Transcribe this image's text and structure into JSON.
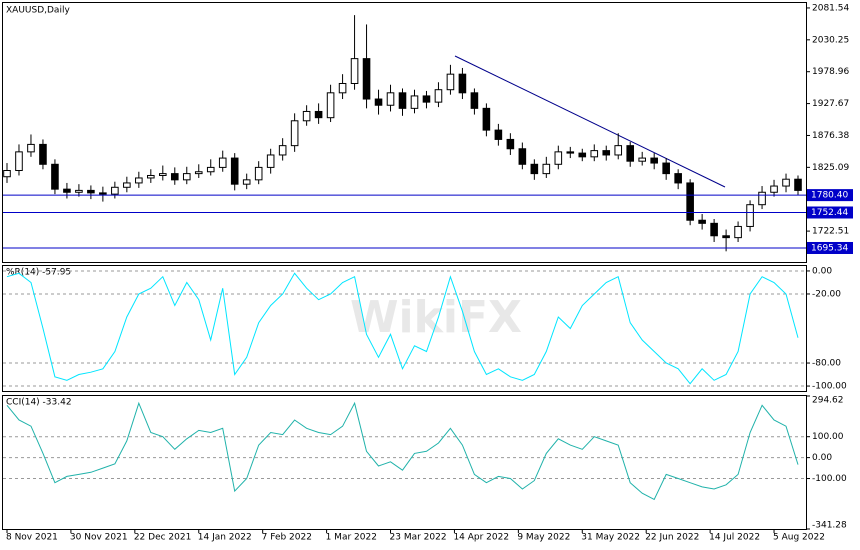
{
  "chart_data": [
    {
      "type": "candlestick",
      "title": "XAUUSD,Daily",
      "watermark": "WikiFX",
      "x": [
        0,
        3,
        6,
        9,
        12,
        15,
        18,
        21,
        24,
        27,
        30,
        33,
        36,
        39,
        42,
        45,
        48,
        51,
        54,
        57,
        60,
        63,
        66,
        69,
        72,
        75,
        78,
        81,
        84,
        87,
        90,
        93,
        96,
        99,
        102,
        105,
        108,
        111,
        114,
        117,
        120,
        123,
        126,
        129,
        132,
        135,
        138,
        141,
        144,
        147,
        150,
        153,
        156,
        159,
        162,
        165,
        168,
        171,
        174,
        177,
        180,
        183,
        186,
        189,
        192,
        195,
        198
      ],
      "open": [
        1810,
        1820,
        1850,
        1862,
        1830,
        1790,
        1785,
        1788,
        1784,
        1782,
        1793,
        1800,
        1808,
        1812,
        1815,
        1805,
        1815,
        1818,
        1825,
        1840,
        1798,
        1805,
        1825,
        1845,
        1860,
        1900,
        1915,
        1905,
        1945,
        1960,
        2000,
        1935,
        1925,
        1945,
        1920,
        1940,
        1930,
        1950,
        1975,
        1945,
        1920,
        1885,
        1870,
        1855,
        1830,
        1815,
        1830,
        1850,
        1848,
        1842,
        1852,
        1845,
        1860,
        1835,
        1840,
        1832,
        1815,
        1800,
        1740,
        1735,
        1715,
        1712,
        1730,
        1765,
        1785,
        1795,
        1806
      ],
      "high": [
        1832,
        1862,
        1878,
        1870,
        1838,
        1800,
        1798,
        1796,
        1794,
        1802,
        1810,
        1818,
        1822,
        1828,
        1825,
        1826,
        1830,
        1838,
        1852,
        1848,
        1815,
        1835,
        1855,
        1872,
        1912,
        1925,
        1928,
        1958,
        1975,
        2070,
        2055,
        1950,
        1958,
        1952,
        1950,
        1948,
        1962,
        1990,
        1985,
        1952,
        1928,
        1895,
        1880,
        1865,
        1838,
        1842,
        1860,
        1858,
        1855,
        1862,
        1860,
        1880,
        1866,
        1850,
        1848,
        1840,
        1822,
        1806,
        1750,
        1742,
        1725,
        1738,
        1772,
        1795,
        1805,
        1815,
        1812
      ],
      "low": [
        1800,
        1812,
        1842,
        1822,
        1782,
        1775,
        1778,
        1774,
        1770,
        1775,
        1785,
        1792,
        1800,
        1804,
        1797,
        1798,
        1808,
        1812,
        1818,
        1788,
        1790,
        1798,
        1815,
        1836,
        1850,
        1892,
        1895,
        1898,
        1935,
        1950,
        1920,
        1910,
        1915,
        1908,
        1912,
        1920,
        1922,
        1942,
        1935,
        1910,
        1875,
        1860,
        1845,
        1822,
        1805,
        1808,
        1822,
        1840,
        1835,
        1835,
        1836,
        1838,
        1826,
        1828,
        1822,
        1805,
        1790,
        1732,
        1725,
        1705,
        1690,
        1705,
        1722,
        1758,
        1778,
        1785,
        1780
      ],
      "close": [
        1820,
        1850,
        1862,
        1830,
        1790,
        1785,
        1788,
        1784,
        1782,
        1793,
        1800,
        1808,
        1812,
        1815,
        1805,
        1815,
        1818,
        1825,
        1840,
        1798,
        1805,
        1825,
        1845,
        1860,
        1900,
        1915,
        1905,
        1945,
        1960,
        2000,
        1935,
        1925,
        1945,
        1920,
        1940,
        1930,
        1950,
        1975,
        1945,
        1920,
        1885,
        1870,
        1855,
        1830,
        1815,
        1830,
        1850,
        1848,
        1842,
        1852,
        1845,
        1860,
        1835,
        1840,
        1832,
        1815,
        1800,
        1740,
        1735,
        1715,
        1712,
        1730,
        1765,
        1785,
        1795,
        1806,
        1788
      ],
      "xlim": [
        -1,
        200
      ],
      "ylim": [
        1672.8,
        2089.5
      ],
      "yticks": [
        1722.51,
        1825.09,
        1876.38,
        1927.67,
        1978.96,
        2030.25,
        2081.54
      ],
      "levels": [
        1780.4,
        1752.44,
        1695.34
      ],
      "level_labels": [
        "1780.40",
        "1752.44",
        "1695.34"
      ],
      "level_color": "#0000c8"
    },
    {
      "type": "line",
      "title": "%R(14) -57.95",
      "x": [
        0,
        3,
        6,
        9,
        12,
        15,
        18,
        21,
        24,
        27,
        30,
        33,
        36,
        39,
        42,
        45,
        48,
        51,
        54,
        57,
        60,
        63,
        66,
        69,
        72,
        75,
        78,
        81,
        84,
        87,
        90,
        93,
        96,
        99,
        102,
        105,
        108,
        111,
        114,
        117,
        120,
        123,
        126,
        129,
        132,
        135,
        138,
        141,
        144,
        147,
        150,
        153,
        156,
        159,
        162,
        165,
        168,
        171,
        174,
        177,
        180,
        183,
        186,
        189,
        192,
        195,
        198
      ],
      "series": [
        {
          "name": "%R(14)",
          "color": "#00e5ff",
          "values": [
            -5,
            -2,
            -10,
            -50,
            -92,
            -95,
            -90,
            -88,
            -85,
            -70,
            -40,
            -20,
            -15,
            -5,
            -30,
            -10,
            -25,
            -60,
            -15,
            -90,
            -75,
            -45,
            -30,
            -20,
            -2,
            -15,
            -25,
            -20,
            -10,
            -5,
            -55,
            -75,
            -55,
            -85,
            -65,
            -70,
            -40,
            -5,
            -35,
            -70,
            -90,
            -85,
            -92,
            -95,
            -90,
            -70,
            -40,
            -50,
            -30,
            -20,
            -10,
            -5,
            -45,
            -60,
            -70,
            -80,
            -85,
            -98,
            -85,
            -95,
            -90,
            -70,
            -20,
            -5,
            -10,
            -20,
            -57.95
          ]
        }
      ],
      "xlim": [
        -1,
        200
      ],
      "ylim": [
        -104.3,
        4.3
      ],
      "yticks": [
        {
          "value": 0,
          "label": "0.00"
        },
        {
          "value": -20,
          "label": "-20.00"
        },
        {
          "value": -80,
          "label": "-80.00"
        },
        {
          "value": -100,
          "label": "-100.00"
        }
      ]
    },
    {
      "type": "line",
      "title": "CCI(14) -33.42",
      "x": [
        0,
        3,
        6,
        9,
        12,
        15,
        18,
        21,
        24,
        27,
        30,
        33,
        36,
        39,
        42,
        45,
        48,
        51,
        54,
        57,
        60,
        63,
        66,
        69,
        72,
        75,
        78,
        81,
        84,
        87,
        90,
        93,
        96,
        99,
        102,
        105,
        108,
        111,
        114,
        117,
        120,
        123,
        126,
        129,
        132,
        135,
        138,
        141,
        144,
        147,
        150,
        153,
        156,
        159,
        162,
        165,
        168,
        171,
        174,
        177,
        180,
        183,
        186,
        189,
        192,
        195,
        198
      ],
      "series": [
        {
          "name": "CCI(14)",
          "color": "#20b2aa",
          "values": [
            250,
            180,
            150,
            20,
            -120,
            -90,
            -80,
            -70,
            -50,
            -30,
            80,
            260,
            120,
            100,
            40,
            90,
            130,
            120,
            140,
            -160,
            -100,
            60,
            120,
            110,
            180,
            140,
            120,
            110,
            150,
            260,
            30,
            -40,
            -20,
            -60,
            20,
            30,
            70,
            140,
            60,
            -80,
            -120,
            -90,
            -100,
            -150,
            -110,
            20,
            90,
            60,
            40,
            100,
            80,
            60,
            -120,
            -170,
            -200,
            -80,
            -100,
            -120,
            -140,
            -150,
            -130,
            -80,
            120,
            250,
            180,
            150,
            -33.42
          ]
        }
      ],
      "xlim": [
        -1,
        200
      ],
      "ylim": [
        -341.28,
        294.62
      ],
      "yticks": [
        294.62,
        {
          "value": 100,
          "label": "100.00"
        },
        {
          "value": 0,
          "label": "0.00"
        },
        {
          "value": -100,
          "label": "-100.00"
        },
        -341.28
      ],
      "xticks": [
        {
          "value": 0,
          "label": "8 Nov 2021"
        },
        {
          "value": 16,
          "label": "30 Nov 2021"
        },
        {
          "value": 32,
          "label": "22 Dec 2021"
        },
        {
          "value": 48,
          "label": "14 Jan 2022"
        },
        {
          "value": 64,
          "label": "7 Feb 2022"
        },
        {
          "value": 80,
          "label": "1 Mar 2022"
        },
        {
          "value": 96,
          "label": "23 Mar 2022"
        },
        {
          "value": 112,
          "label": "14 Apr 2022"
        },
        {
          "value": 128,
          "label": "9 May 2022"
        },
        {
          "value": 144,
          "label": "31 May 2022"
        },
        {
          "value": 160,
          "label": "22 Jun 2022"
        },
        {
          "value": 176,
          "label": "14 Jul 2022"
        },
        {
          "value": 192,
          "label": "5 Aug 2022"
        }
      ]
    }
  ]
}
